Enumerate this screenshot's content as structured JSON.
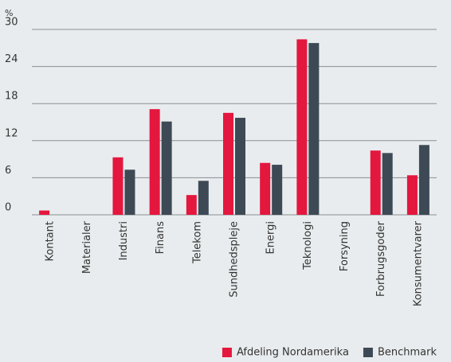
{
  "chart_data": {
    "type": "bar",
    "unit_label": "%",
    "categories": [
      "Kontant",
      "Materialer",
      "Industri",
      "Finans",
      "Telekom",
      "Sundhedspleje",
      "Energi",
      "Teknologi",
      "Forsyning",
      "Forbrugsgoder",
      "Konsumentvarer"
    ],
    "series": [
      {
        "name": "Afdeling Nordamerika",
        "color": "#e4173e",
        "values": [
          0.7,
          0,
          9.3,
          17.1,
          3.2,
          16.5,
          8.4,
          28.4,
          0,
          10.4,
          6.4
        ]
      },
      {
        "name": "Benchmark",
        "color": "#3d4a55",
        "values": [
          0,
          0,
          7.3,
          15.1,
          5.5,
          15.7,
          8.1,
          27.8,
          0,
          10.0,
          11.3
        ]
      }
    ],
    "ylim": [
      0,
      30
    ],
    "yticks": [
      0,
      6,
      12,
      18,
      24,
      30
    ],
    "grid": true,
    "legend": "bottom-right"
  }
}
